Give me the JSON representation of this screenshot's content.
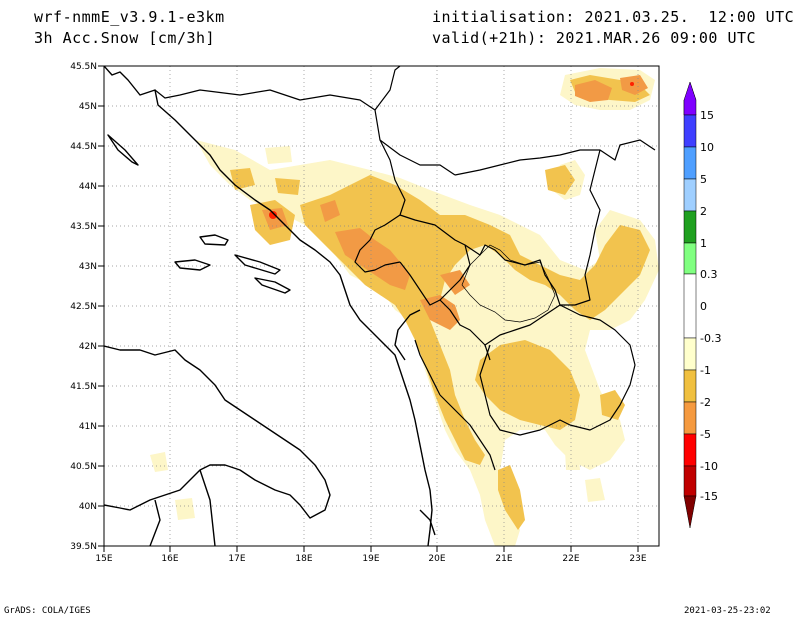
{
  "header": {
    "model": "wrf-nmmE_v3.9.1-e3km",
    "field": "3h Acc.Snow [cm/3h]",
    "init": "initialisation: 2021.03.25.  12:00 UTC",
    "valid": "valid(+21h): 2021.MAR.26 09:00 UTC"
  },
  "footer": {
    "credit": "GrADS: COLA/IGES",
    "timestamp": "2021-03-25-23:02"
  },
  "map": {
    "lat_labels": [
      "45.5N",
      "45N",
      "44.5N",
      "44N",
      "43.5N",
      "43N",
      "42.5N",
      "42N",
      "41.5N",
      "41N",
      "40.5N",
      "40N",
      "39.5N"
    ],
    "lon_labels": [
      "15E",
      "16E",
      "17E",
      "18E",
      "19E",
      "20E",
      "21E",
      "22E",
      "23E"
    ],
    "lat_range": [
      39.5,
      45.5
    ],
    "lon_range": [
      15,
      23.3
    ],
    "grid": "dotted"
  },
  "colorbar": {
    "labels": [
      "15",
      "10",
      "5",
      "2",
      "1",
      "0.3",
      "0",
      "-0.3",
      "-1",
      "-2",
      "-5",
      "-10",
      "-15"
    ],
    "colors": [
      "#7f00ff",
      "#3f3fff",
      "#4f9fff",
      "#9fcfff",
      "#20a020",
      "#80ff80",
      "#ffffff",
      "#ffffcc",
      "#f0c040",
      "#f59a40",
      "#ff0000",
      "#c00000",
      "#800000"
    ]
  },
  "colors": {
    "snow_light": "#fdf6c8",
    "snow_mid": "#f2c34e",
    "snow_heavy": "#f29a45",
    "snow_max": "#ff2000"
  }
}
